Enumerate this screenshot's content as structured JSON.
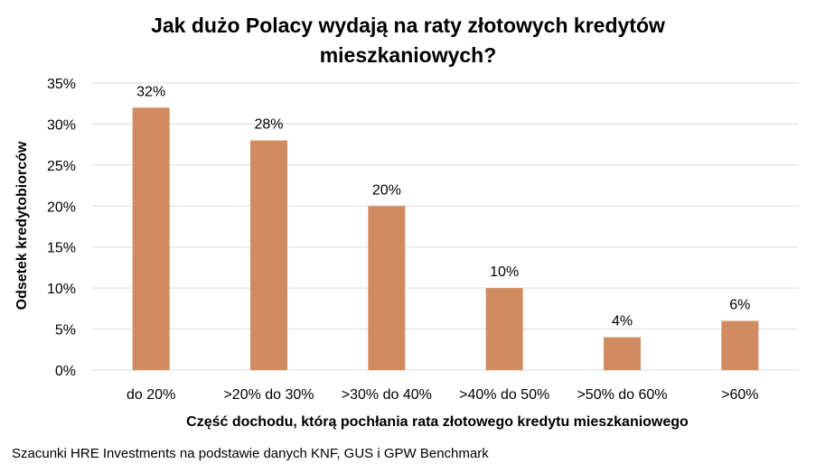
{
  "chart_data": {
    "type": "bar",
    "title_lines": [
      "Jak dużo Polacy wydają na raty złotowych kredytów",
      "mieszkaniowych?"
    ],
    "categories": [
      "do 20%",
      ">20% do 30%",
      ">30% do 40%",
      ">40% do 50%",
      ">50% do 60%",
      ">60%"
    ],
    "values": [
      32,
      28,
      20,
      10,
      4,
      6
    ],
    "data_labels": [
      "32%",
      "28%",
      "20%",
      "10%",
      "4%",
      "6%"
    ],
    "xlabel": "Część dochodu, którą pochłania rata złotowego kredytu mieszkaniowego",
    "ylabel": "Odsetek kredytobiorców",
    "ylim": [
      0,
      35
    ],
    "yticks": [
      0,
      5,
      10,
      15,
      20,
      25,
      30,
      35
    ],
    "ytick_labels": [
      "0%",
      "5%",
      "10%",
      "15%",
      "20%",
      "25%",
      "30%",
      "35%"
    ],
    "grid": true,
    "legend": "none",
    "bar_color": "#D08C60",
    "grid_color": "#D9D9D9"
  },
  "source": "Szacunki HRE Investments na podstawie danych KNF, GUS i GPW Benchmark"
}
